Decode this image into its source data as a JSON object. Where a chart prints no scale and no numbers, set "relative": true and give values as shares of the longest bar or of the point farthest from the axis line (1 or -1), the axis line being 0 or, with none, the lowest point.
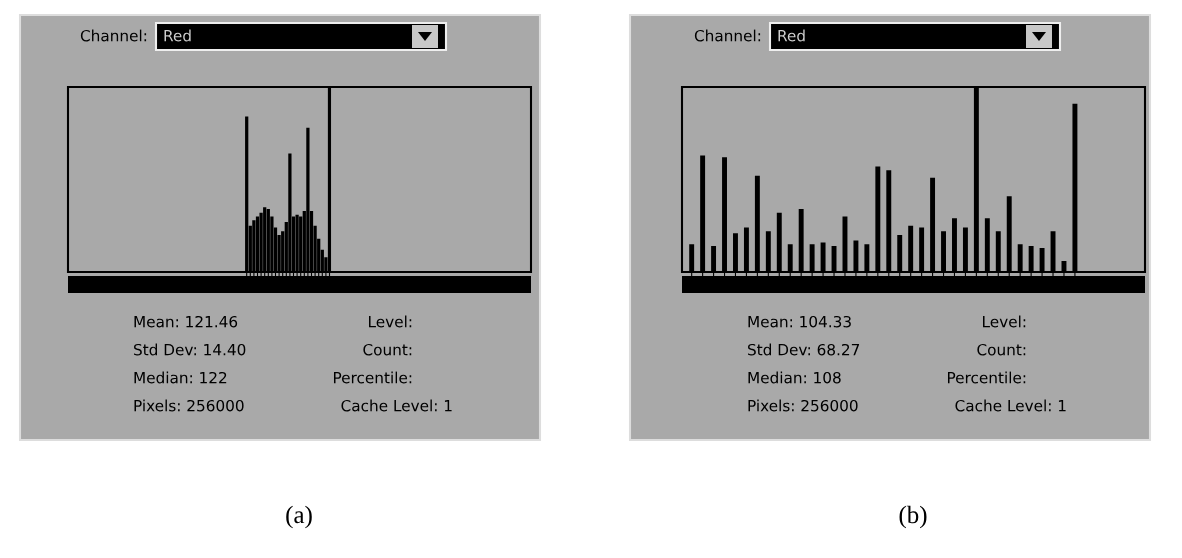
{
  "chart_data": [
    {
      "type": "bar",
      "relative": true,
      "title": "(a)",
      "color": "#000000",
      "categories": [
        null,
        null,
        null,
        null,
        null,
        null,
        null,
        null,
        null,
        null,
        null,
        null,
        null,
        null,
        null,
        null,
        null,
        null,
        null,
        null,
        null,
        null,
        null,
        null
      ],
      "values": [
        0.84,
        0.25,
        0.28,
        0.3,
        0.32,
        0.35,
        0.34,
        0.3,
        0.24,
        0.2,
        0.22,
        0.27,
        0.64,
        0.3,
        0.31,
        0.3,
        0.33,
        0.78,
        0.33,
        0.25,
        0.18,
        0.12,
        0.08,
        1.0
      ],
      "annotations": [
        "Channel:",
        "Red",
        "Mean: 121.46",
        "Std Dev: 14.40",
        "Median: 122",
        "Pixels: 256000",
        "Level:",
        "Count:",
        "Percentile:",
        "Cache Level: 1"
      ]
    },
    {
      "type": "bar",
      "relative": true,
      "title": "(b)",
      "color": "#000000",
      "categories": [
        null,
        null,
        null,
        null,
        null,
        null,
        null,
        null,
        null,
        null,
        null,
        null,
        null,
        null,
        null,
        null,
        null,
        null,
        null,
        null,
        null,
        null,
        null,
        null,
        null,
        null,
        null,
        null,
        null,
        null,
        null,
        null,
        null,
        null,
        null,
        null
      ],
      "values": [
        0.15,
        0.63,
        0.14,
        0.62,
        0.21,
        0.24,
        0.52,
        0.22,
        0.32,
        0.15,
        0.34,
        0.15,
        0.16,
        0.14,
        0.3,
        0.17,
        0.15,
        0.57,
        0.55,
        0.2,
        0.25,
        0.24,
        0.51,
        0.22,
        0.29,
        0.24,
        1.0,
        0.29,
        0.22,
        0.41,
        0.15,
        0.14,
        0.13,
        0.22,
        0.06,
        0.91
      ],
      "annotations": [
        "Channel:",
        "Red",
        "Mean: 104.33",
        "Std Dev: 68.27",
        "Median: 108",
        "Pixels: 256000",
        "Level:",
        "Count:",
        "Percentile:",
        "Cache Level: 1"
      ]
    }
  ]
}
